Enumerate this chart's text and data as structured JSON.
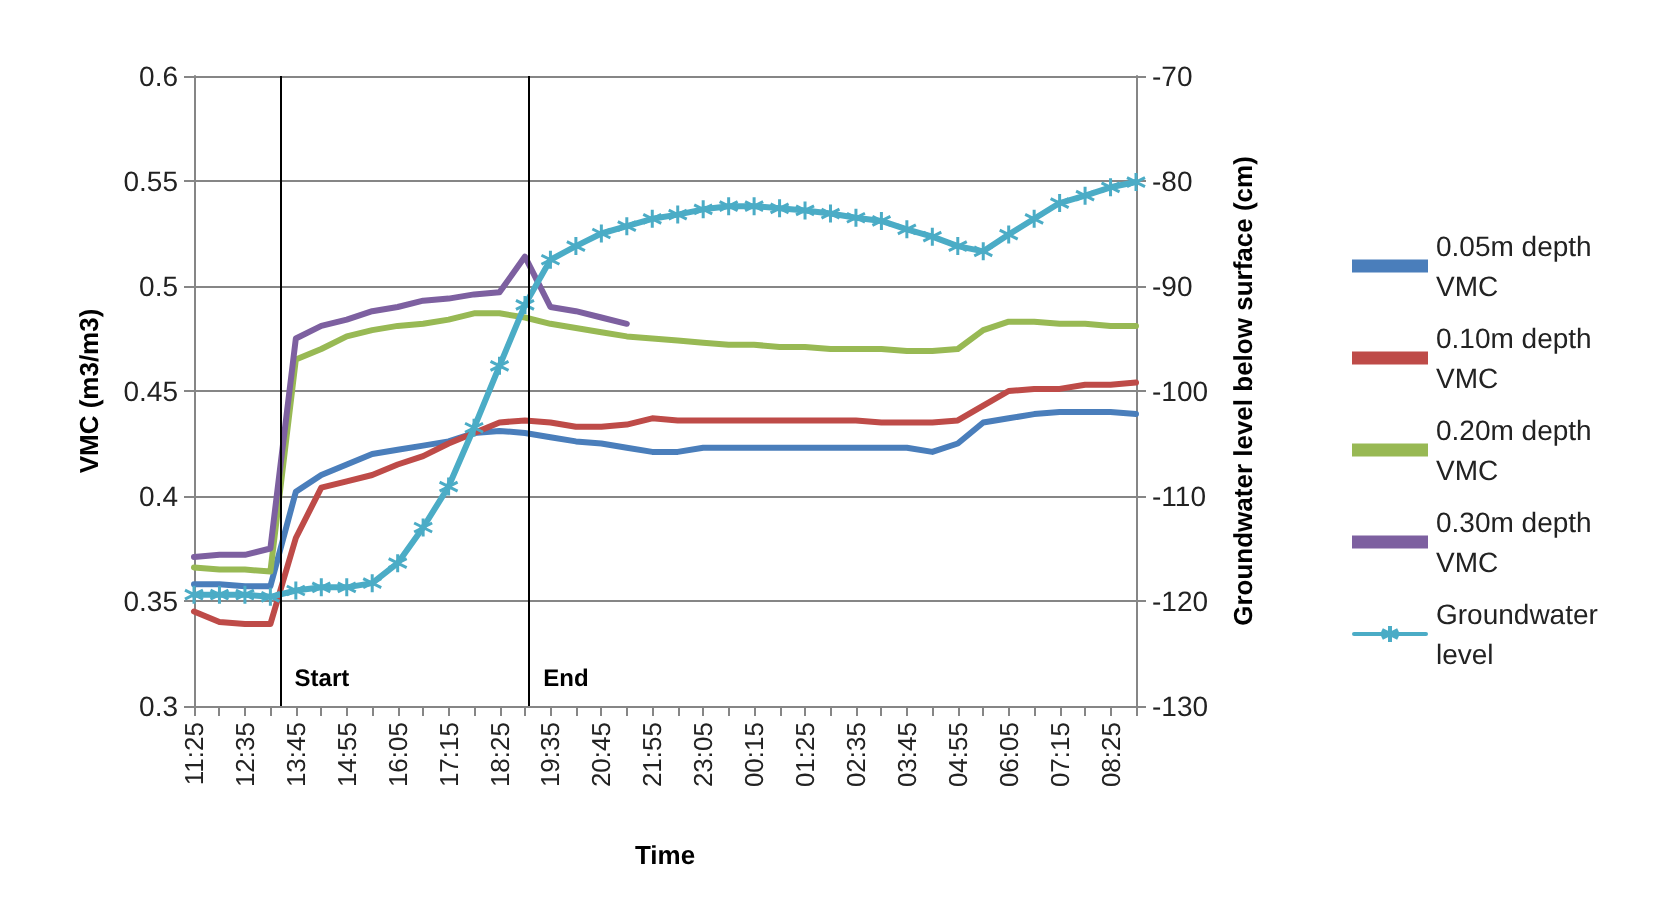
{
  "chart_data": {
    "type": "line",
    "xlabel": "Time",
    "ylabel": "VMC (m3/m3)",
    "y2label": "Groundwater level below surface (cm)",
    "categories": [
      "11:25",
      null,
      "12:35",
      null,
      "13:45",
      null,
      "14:55",
      null,
      "16:05",
      null,
      "17:15",
      null,
      "18:25",
      null,
      "19:35",
      null,
      "20:45",
      null,
      "21:55",
      null,
      "23:05",
      null,
      "00:15",
      null,
      "01:25",
      null,
      "02:35",
      null,
      "03:45",
      null,
      "04:55",
      null,
      "06:05",
      null,
      "07:15",
      null,
      "08:25",
      null
    ],
    "ylim": [
      0.3,
      0.6
    ],
    "yticks": [
      0.3,
      0.35,
      0.4,
      0.45,
      0.5,
      0.55,
      0.6
    ],
    "y2lim": [
      -130,
      -70
    ],
    "y2ticks": [
      -130,
      -120,
      -110,
      -100,
      -90,
      -80,
      -70
    ],
    "grid": "y",
    "legend": "right",
    "marker": "none",
    "line_style": "solid",
    "series": [
      {
        "name": "0.05m depth VMC",
        "color": "#4a7ebb",
        "values": [
          0.358,
          0.358,
          0.357,
          0.357,
          0.402,
          0.41,
          0.415,
          0.42,
          0.422,
          0.424,
          0.426,
          0.43,
          0.431,
          0.43,
          0.428,
          0.426,
          0.425,
          0.423,
          0.421,
          0.421,
          0.423,
          0.423,
          0.423,
          0.423,
          0.423,
          0.423,
          0.423,
          0.423,
          0.423,
          0.421,
          0.425,
          0.435,
          0.437,
          0.439,
          0.44,
          0.44,
          0.44,
          0.439
        ]
      },
      {
        "name": "0.10m depth VMC",
        "color": "#be4b48",
        "values": [
          0.345,
          0.34,
          0.339,
          0.339,
          0.38,
          0.404,
          0.407,
          0.41,
          0.415,
          0.419,
          0.425,
          0.43,
          0.435,
          0.436,
          0.435,
          0.433,
          0.433,
          0.434,
          0.437,
          0.436,
          0.436,
          0.436,
          0.436,
          0.436,
          0.436,
          0.436,
          0.436,
          0.435,
          0.435,
          0.435,
          0.436,
          0.443,
          0.45,
          0.451,
          0.451,
          0.453,
          0.453,
          0.454
        ]
      },
      {
        "name": "0.20m depth VMC",
        "color": "#98b954",
        "values": [
          0.366,
          0.365,
          0.365,
          0.364,
          0.465,
          0.47,
          0.476,
          0.479,
          0.481,
          0.482,
          0.484,
          0.487,
          0.487,
          0.485,
          0.482,
          0.48,
          0.478,
          0.476,
          0.475,
          0.474,
          0.473,
          0.472,
          0.472,
          0.471,
          0.471,
          0.47,
          0.47,
          0.47,
          0.469,
          0.469,
          0.47,
          0.479,
          0.483,
          0.483,
          0.482,
          0.482,
          0.481,
          0.481
        ]
      },
      {
        "name": "0.30m depth VMC",
        "color": "#7d60a0",
        "values": [
          0.371,
          0.372,
          0.372,
          0.375,
          0.475,
          0.481,
          0.484,
          0.488,
          0.49,
          0.493,
          0.494,
          0.496,
          0.497,
          0.514,
          0.49,
          0.488,
          0.485,
          0.482,
          null,
          null,
          null,
          null,
          null,
          null,
          null,
          null,
          null,
          null,
          null,
          null,
          null,
          null,
          null,
          null,
          null,
          null,
          null,
          null
        ]
      },
      {
        "name": "Groundwater level",
        "color": "#4bacc6",
        "axis": "y2",
        "marker": "star",
        "values": [
          -119.4,
          -119.4,
          -119.4,
          -119.6,
          -119.0,
          -118.7,
          -118.7,
          -118.3,
          -116.4,
          -113.0,
          -109.1,
          -103.5,
          -97.6,
          -91.8,
          -87.5,
          -86.2,
          -85.0,
          -84.3,
          -83.6,
          -83.2,
          -82.7,
          -82.4,
          -82.4,
          -82.6,
          -82.8,
          -83.1,
          -83.5,
          -83.8,
          -84.6,
          -85.3,
          -86.2,
          -86.7,
          -85.1,
          -83.6,
          -82.1,
          -81.4,
          -80.6,
          -80.1
        ]
      }
    ],
    "annotations": [
      "Start",
      "End"
    ]
  }
}
